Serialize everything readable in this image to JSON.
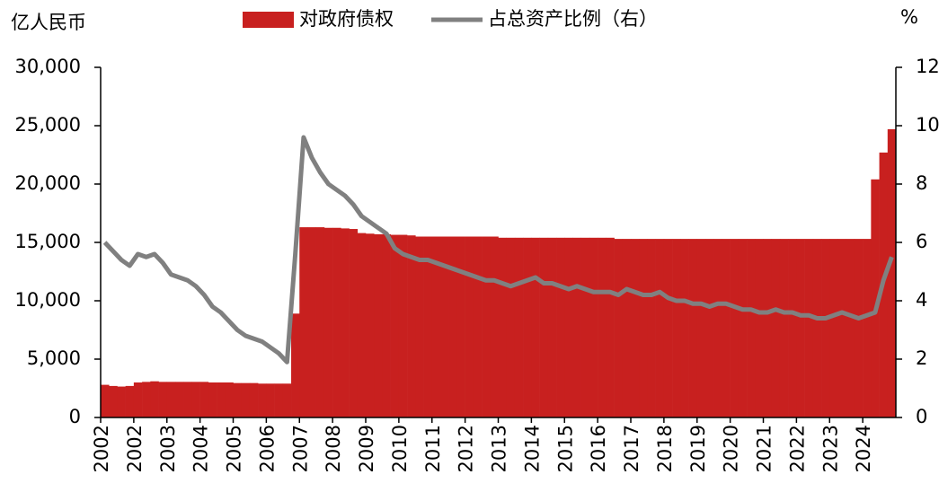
{
  "chart_data": {
    "type": "bar",
    "y_label": "亿人民币",
    "y2_label": "%",
    "categories": [
      "2002",
      null,
      null,
      null,
      "2002",
      null,
      null,
      null,
      "2003",
      null,
      null,
      null,
      "2004",
      null,
      null,
      null,
      "2005",
      null,
      null,
      null,
      "2006",
      null,
      null,
      null,
      "2007",
      null,
      null,
      null,
      "2008",
      null,
      null,
      null,
      "2009",
      null,
      null,
      null,
      "2010",
      null,
      null,
      null,
      "2011",
      null,
      null,
      null,
      "2012",
      null,
      null,
      null,
      "2013",
      null,
      null,
      null,
      "2014",
      null,
      null,
      null,
      "2015",
      null,
      null,
      null,
      "2016",
      null,
      null,
      null,
      "2017",
      null,
      null,
      null,
      "2018",
      null,
      null,
      null,
      "2019",
      null,
      null,
      null,
      "2020",
      null,
      null,
      null,
      "2021",
      null,
      null,
      null,
      "2022",
      null,
      null,
      null,
      "2023",
      null,
      null,
      null,
      "2024",
      null,
      null,
      null
    ],
    "series": [
      {
        "name": "对政府债权",
        "type": "bar",
        "color": "#c8201f",
        "values": [
          2800,
          2700,
          2650,
          2700,
          3000,
          3050,
          3100,
          3050,
          3050,
          3050,
          3050,
          3050,
          3050,
          3000,
          3000,
          3000,
          2950,
          2950,
          2950,
          2900,
          2900,
          2900,
          2900,
          8900,
          16300,
          16300,
          16300,
          16250,
          16250,
          16200,
          16150,
          15800,
          15750,
          15700,
          15700,
          15650,
          15650,
          15600,
          15500,
          15500,
          15500,
          15500,
          15500,
          15500,
          15500,
          15500,
          15500,
          15500,
          15400,
          15400,
          15400,
          15400,
          15400,
          15400,
          15400,
          15400,
          15400,
          15400,
          15400,
          15400,
          15400,
          15400,
          15300,
          15300,
          15300,
          15300,
          15300,
          15300,
          15300,
          15300,
          15300,
          15300,
          15300,
          15300,
          15300,
          15300,
          15300,
          15300,
          15300,
          15300,
          15300,
          15300,
          15300,
          15300,
          15300,
          15300,
          15300,
          15300,
          15300,
          15300,
          15300,
          15300,
          15300,
          20400,
          22700,
          24700
        ]
      },
      {
        "name": "占总资产比例（右）",
        "type": "line",
        "axis": "y2",
        "color": "#808080",
        "values": [
          6.0,
          5.7,
          5.4,
          5.2,
          5.6,
          5.5,
          5.6,
          5.3,
          4.9,
          4.8,
          4.7,
          4.5,
          4.2,
          3.8,
          3.6,
          3.3,
          3.0,
          2.8,
          2.7,
          2.6,
          2.4,
          2.2,
          1.9,
          5.6,
          9.6,
          8.9,
          8.4,
          8.0,
          7.8,
          7.6,
          7.3,
          6.9,
          6.7,
          6.5,
          6.3,
          5.8,
          5.6,
          5.5,
          5.4,
          5.4,
          5.3,
          5.2,
          5.1,
          5.0,
          4.9,
          4.8,
          4.7,
          4.7,
          4.6,
          4.5,
          4.6,
          4.7,
          4.8,
          4.6,
          4.6,
          4.5,
          4.4,
          4.5,
          4.4,
          4.3,
          4.3,
          4.3,
          4.2,
          4.4,
          4.3,
          4.2,
          4.2,
          4.3,
          4.1,
          4.0,
          4.0,
          3.9,
          3.9,
          3.8,
          3.9,
          3.9,
          3.8,
          3.7,
          3.7,
          3.6,
          3.6,
          3.7,
          3.6,
          3.6,
          3.5,
          3.5,
          3.4,
          3.4,
          3.5,
          3.6,
          3.5,
          3.4,
          3.5,
          3.6,
          4.7,
          5.5
        ]
      }
    ],
    "ylim": [
      0,
      30000
    ],
    "yticks": [
      0,
      {
        "value": 5000,
        "label": "5,000"
      },
      {
        "value": 10000,
        "label": "10,000"
      },
      {
        "value": 15000,
        "label": "15,000"
      },
      {
        "value": 20000,
        "label": "20,000"
      },
      {
        "value": 25000,
        "label": "25,000"
      },
      {
        "value": 30000,
        "label": "30,000"
      }
    ],
    "y2lim": [
      0,
      12
    ],
    "y2ticks": [
      0,
      2,
      4,
      6,
      8,
      10,
      12
    ],
    "legend": "top"
  }
}
